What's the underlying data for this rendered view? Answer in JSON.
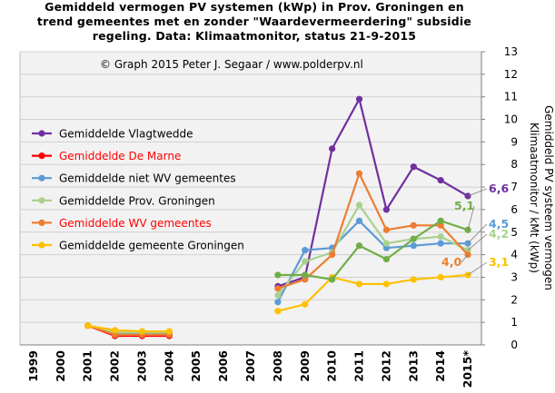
{
  "chart_data": {
    "type": "line",
    "title": [
      "Gemiddeld vermogen PV systemen (kWp) in Prov. Groningen  en",
      "trend gemeentes met en zonder \"Waardevermeerdering\"  subsidie",
      "regeling. Data: Klimaatmonitor,  status 21-9-2015"
    ],
    "credit": "© Graph  2015  Peter J. Segaar /  www.polderpv.nl",
    "ylabel": [
      "Gemiddeld  PV systeem vermogen",
      "Klimaatmonitor / kMt (kWp)"
    ],
    "xlabel": "",
    "categories": [
      "1999",
      "2000",
      "2001",
      "2002",
      "2003",
      "2004",
      "2005",
      "2006",
      "2007",
      "2008",
      "2009",
      "2010",
      "2011",
      "2012",
      "2013",
      "2014",
      "2015*"
    ],
    "ylim": [
      0,
      13
    ],
    "yticks": [
      "0",
      "1",
      "2",
      "3",
      "4",
      "5",
      "6",
      "7",
      "8",
      "9",
      "10",
      "11",
      "12",
      "13"
    ],
    "grid": true,
    "legend_position": "left",
    "series": [
      {
        "name": "Gemiddelde Vlagtwedde",
        "color": "#7030a0",
        "label_color": "#000000",
        "values": [
          null,
          null,
          0.85,
          0.55,
          0.45,
          0.45,
          null,
          null,
          null,
          2.6,
          3.0,
          8.7,
          10.9,
          6.0,
          7.9,
          7.3,
          6.6
        ],
        "end_label": "6,6"
      },
      {
        "name": "Gemiddelde De Marne",
        "color": "#ff0000",
        "label_color": "#ff0000",
        "values": [
          null,
          null,
          0.85,
          0.4,
          0.4,
          0.4,
          null,
          null,
          null,
          null,
          null,
          null,
          null,
          null,
          null,
          null,
          null
        ]
      },
      {
        "name": "Gemiddelde niet WV gemeentes",
        "color": "#5b9bd5",
        "label_color": "#000000",
        "values": [
          null,
          null,
          0.85,
          0.5,
          0.5,
          0.5,
          null,
          null,
          null,
          1.9,
          4.2,
          4.3,
          5.5,
          4.3,
          4.4,
          4.5,
          4.5
        ],
        "end_label": "4,5"
      },
      {
        "name": "Gemiddelde Prov. Groningen",
        "color": "#a9d18e",
        "label_color": "#000000",
        "values": [
          null,
          null,
          0.85,
          0.55,
          0.55,
          0.55,
          null,
          null,
          null,
          2.2,
          3.7,
          4.1,
          6.2,
          4.5,
          4.7,
          4.8,
          4.2
        ],
        "end_label": "4,2"
      },
      {
        "name": "Gemiddelde WV gemeentes",
        "color": "#ed7d31",
        "label_color": "#ff0000",
        "values": [
          null,
          null,
          0.85,
          0.45,
          0.45,
          0.45,
          null,
          null,
          null,
          2.5,
          2.9,
          4.0,
          7.6,
          5.1,
          5.3,
          5.3,
          4.0
        ],
        "end_label": "4,0"
      },
      {
        "name": "Gemiddelde gemeente Groningen",
        "color": "#ffc000",
        "label_color": "#000000",
        "values": [
          null,
          null,
          0.85,
          0.65,
          0.6,
          0.6,
          null,
          null,
          null,
          1.5,
          1.8,
          3.0,
          2.7,
          2.7,
          2.9,
          3.0,
          3.1
        ],
        "end_label": "3,1"
      },
      {
        "name": "",
        "color": "#70ad47",
        "label_color": "#000000",
        "values": [
          null,
          null,
          null,
          null,
          null,
          null,
          null,
          null,
          null,
          3.1,
          3.1,
          2.9,
          4.4,
          3.8,
          4.7,
          5.5,
          5.1
        ],
        "end_label": "5,1"
      }
    ]
  }
}
